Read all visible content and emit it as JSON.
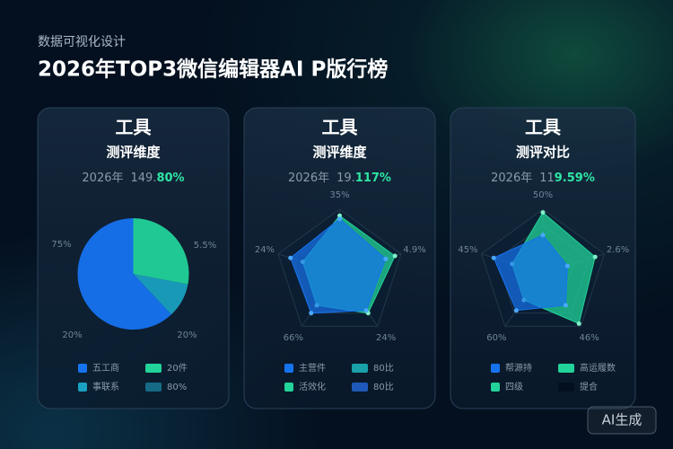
{
  "header": {
    "subtitle": "数据可视化设计",
    "title": "2026年TOP3微信编辑器AI P版行榜"
  },
  "badge": "AI生成",
  "chart_data": [
    {
      "type": "pie",
      "title": "工具",
      "subtitle": "测评维度",
      "year": "2026年",
      "value": "149.",
      "value_hi": "80%",
      "values": [
        28,
        10,
        62
      ],
      "colors": [
        "#22d39a",
        "#1aa0c0",
        "#1673f0"
      ],
      "annotations": [
        "5.5%",
        "20%",
        "20%",
        "75%"
      ],
      "legend": [
        {
          "label": "五工商",
          "color": "#1673f0"
        },
        {
          "label": "20件",
          "color": "#22d39a"
        },
        {
          "label": "事联系",
          "color": "#1aa0c0"
        },
        {
          "label": "80%",
          "color": "#156a86"
        }
      ]
    },
    {
      "type": "radar",
      "title": "工具",
      "subtitle": "测评维度",
      "year": "2026年",
      "value": "19.",
      "value_hi": "117%",
      "categories": [
        "35%",
        "4.9%",
        "24%",
        "66%",
        "24%"
      ],
      "rlim": [
        0,
        100
      ],
      "series": [
        {
          "color": "#22d39a",
          "values": [
            90,
            90,
            75,
            60,
            60
          ]
        },
        {
          "color": "#1673f0",
          "values": [
            85,
            75,
            70,
            75,
            80
          ]
        }
      ],
      "legend": [
        {
          "label": "主营件",
          "color": "#1673f0"
        },
        {
          "label": "80比",
          "color": "#1aa0a8"
        },
        {
          "label": "活效化",
          "color": "#22d39a"
        },
        {
          "label": "80比",
          "color": "#1e58b8"
        }
      ]
    },
    {
      "type": "radar",
      "title": "工具",
      "subtitle": "测评对比",
      "year": "2026年",
      "value": "11",
      "value_hi": "9.59%",
      "categories": [
        "50%",
        "2.6%",
        "46%",
        "60%",
        "45%"
      ],
      "rlim": [
        0,
        100
      ],
      "series": [
        {
          "color": "#22d39a",
          "values": [
            95,
            85,
            95,
            50,
            50
          ]
        },
        {
          "color": "#1673f0",
          "values": [
            60,
            40,
            60,
            70,
            80
          ]
        }
      ],
      "legend": [
        {
          "label": "帮源持",
          "color": "#1673f0"
        },
        {
          "label": "高运履数",
          "color": "#22d39a"
        },
        {
          "label": "四级",
          "color": "#22d39a"
        },
        {
          "label": "提合",
          "color": "#04101f"
        }
      ]
    }
  ]
}
